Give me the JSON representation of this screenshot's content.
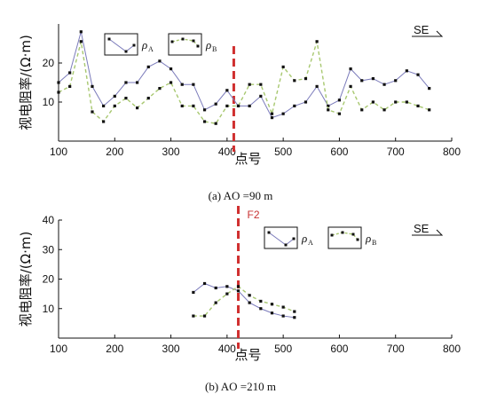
{
  "chart_data": [
    {
      "type": "line",
      "ylabel": "视电阻率/(Ω·m)",
      "xlabel": "点号",
      "caption": "(a) AO =90 m",
      "xlim": [
        100,
        800
      ],
      "ylim": [
        0,
        30
      ],
      "xticks": [
        100,
        200,
        300,
        400,
        500,
        600,
        700,
        800
      ],
      "yticks": [
        10,
        20
      ],
      "direction_label": "SE",
      "x": [
        100,
        120,
        140,
        160,
        180,
        200,
        220,
        240,
        260,
        280,
        300,
        320,
        340,
        360,
        380,
        400,
        420,
        440,
        460,
        480,
        500,
        520,
        540,
        560,
        580,
        600,
        620,
        640,
        660,
        680,
        700,
        720,
        740,
        760
      ],
      "series": [
        {
          "name": "ρA",
          "values": [
            15,
            17.5,
            28,
            14,
            9,
            11.5,
            15,
            15,
            19,
            20.5,
            18.5,
            14.5,
            14.5,
            8,
            9.5,
            13,
            9,
            9,
            11.5,
            6,
            7,
            9,
            10,
            14,
            9,
            10.5,
            18.5,
            15.5,
            16,
            14.5,
            15.5,
            18,
            17,
            13.5
          ],
          "color": "#7b7bbb"
        },
        {
          "name": "ρB",
          "values": [
            12.5,
            14,
            25.5,
            7.5,
            5,
            9,
            11,
            8.5,
            11,
            13.5,
            15,
            9,
            9,
            5,
            4.5,
            9,
            9,
            14.5,
            14.5,
            7,
            19,
            15.5,
            16,
            25.5,
            8,
            7,
            14,
            8,
            10,
            8,
            10,
            10,
            9,
            8
          ],
          "color": "#a8c870"
        }
      ],
      "marker": {
        "x": 412,
        "label": ""
      }
    },
    {
      "type": "line",
      "ylabel": "视电阻率/(Ω·m)",
      "xlabel": "点号",
      "caption": "(b) AO =210 m",
      "xlim": [
        100,
        800
      ],
      "ylim": [
        0,
        40
      ],
      "xticks": [
        100,
        200,
        300,
        400,
        500,
        600,
        700,
        800
      ],
      "yticks": [
        10,
        20,
        30,
        40
      ],
      "direction_label": "SE",
      "x": [
        340,
        360,
        380,
        400,
        420,
        440,
        460,
        480,
        500,
        520
      ],
      "series": [
        {
          "name": "ρA",
          "values": [
            15.5,
            18.5,
            17,
            17.5,
            16,
            12,
            10,
            8.5,
            7.5,
            7
          ],
          "color": "#7b7bbb"
        },
        {
          "name": "ρB",
          "values": [
            7.5,
            7.5,
            12,
            15,
            17.5,
            14.5,
            12.5,
            11.5,
            10.5,
            9
          ],
          "color": "#a8c870"
        }
      ],
      "marker": {
        "x": 420,
        "label": "F2"
      }
    }
  ],
  "legend": {
    "rhoA_main": "ρ",
    "rhoA_sub": "A",
    "rhoB_main": "ρ",
    "rhoB_sub": "B"
  },
  "colors": {
    "fault_line": "#d03030",
    "axis": "#111111",
    "marker": "#111111"
  }
}
